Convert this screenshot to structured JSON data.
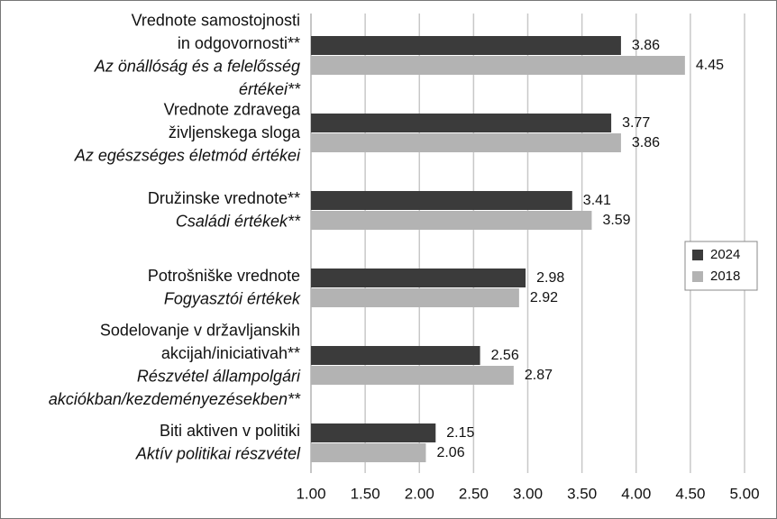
{
  "chart_data": {
    "type": "hbar",
    "categories": [
      {
        "sl": [
          "Vrednote samostojnosti",
          "in odgovornosti**"
        ],
        "hu": [
          "Az önállóság és a felelősség",
          "értékei**"
        ]
      },
      {
        "sl": [
          "Vrednote zdravega",
          "življenskega sloga"
        ],
        "hu": [
          "Az egészséges életmód értékei"
        ]
      },
      {
        "sl": [
          "Družinske vrednote**"
        ],
        "hu": [
          "Családi értékek**"
        ]
      },
      {
        "sl": [
          "Potrošniške vrednote"
        ],
        "hu": [
          "Fogyasztói értékek"
        ]
      },
      {
        "sl": [
          "Sodelovanje v državljanskih",
          "akcijah/iniciativah**"
        ],
        "hu": [
          "Részvétel állampolgári",
          "akciókban/kezdeményezésekben**"
        ]
      },
      {
        "sl": [
          "Biti aktiven v politiki"
        ],
        "hu": [
          "Aktív politikai részvétel"
        ]
      }
    ],
    "series": [
      {
        "name": "2024",
        "color": "#3b3b3b",
        "values": [
          3.86,
          3.77,
          3.41,
          2.98,
          2.56,
          2.15
        ]
      },
      {
        "name": "2018",
        "color": "#b3b3b3",
        "values": [
          4.45,
          3.86,
          3.59,
          2.92,
          2.87,
          2.06
        ]
      }
    ],
    "xlim": [
      1,
      5
    ],
    "xticks": [
      {
        "value": 1,
        "label": "1.00"
      },
      {
        "value": 1.5,
        "label": "1.50"
      },
      {
        "value": 2,
        "label": "2.00"
      },
      {
        "value": 2.5,
        "label": "2.50"
      },
      {
        "value": 3,
        "label": "3.00"
      },
      {
        "value": 3.5,
        "label": "3.50"
      },
      {
        "value": 4,
        "label": "4.00"
      },
      {
        "value": 4.5,
        "label": "4.50"
      },
      {
        "value": 5,
        "label": "5.00"
      }
    ],
    "grid": true,
    "legend": "right"
  }
}
